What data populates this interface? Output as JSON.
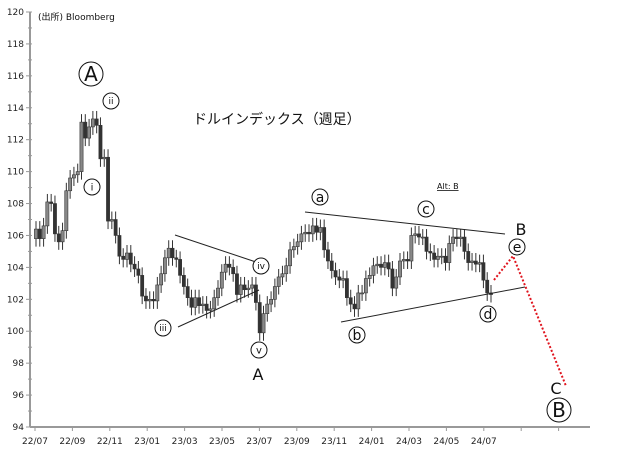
{
  "chart_data": {
    "type": "candlestick",
    "title": "ドルインデックス（週足）",
    "source": "(出所)  Bloomberg",
    "alt_label": "Alt: B",
    "ylim": [
      94,
      120
    ],
    "yticks": [
      94,
      96,
      98,
      100,
      102,
      104,
      106,
      108,
      110,
      112,
      114,
      116,
      118,
      120
    ],
    "xtick_labels": [
      "22/07",
      "22/09",
      "22/11",
      "23/01",
      "23/03",
      "23/05",
      "23/07",
      "23/09",
      "23/11",
      "24/01",
      "24/03",
      "24/05",
      "24/07"
    ],
    "grid": false,
    "close": [
      106.4,
      105.8,
      106.6,
      108.1,
      108.0,
      106.1,
      105.6,
      106.3,
      108.8,
      109.6,
      109.8,
      110.0,
      113.1,
      112.1,
      112.8,
      113.3,
      112.9,
      110.8,
      110.9,
      106.9,
      107.0,
      106.0,
      104.7,
      104.5,
      104.9,
      104.2,
      103.9,
      103.5,
      102.2,
      101.9,
      102.0,
      101.9,
      102.9,
      103.6,
      104.6,
      105.2,
      104.6,
      104.5,
      103.5,
      102.8,
      102.1,
      101.5,
      102.1,
      101.6,
      101.7,
      101.3,
      101.4,
      102.1,
      102.7,
      103.7,
      104.2,
      104.0,
      103.6,
      102.3,
      102.9,
      102.6,
      102.7,
      102.9,
      101.8,
      99.9,
      101.1,
      101.7,
      102.0,
      102.8,
      103.4,
      103.6,
      104.1,
      105.1,
      105.3,
      105.6,
      106.1,
      106.2,
      106.1,
      106.6,
      106.2,
      106.5,
      105.1,
      104.4,
      103.8,
      103.4,
      103.2,
      103.3,
      102.1,
      101.7,
      101.4,
      102.4,
      102.4,
      103.3,
      103.5,
      104.1,
      104.2,
      104.0,
      104.3,
      103.9,
      102.7,
      103.4,
      104.4,
      104.5,
      104.4,
      106.0,
      106.1,
      105.9,
      105.9,
      105.0,
      104.9,
      104.5,
      104.7,
      104.7,
      104.3,
      105.5,
      105.9,
      105.8,
      105.9,
      105.0,
      104.3,
      104.4,
      104.2,
      104.3,
      103.2,
      102.4,
      102.3
    ],
    "wave_labels": {
      "A_major": "A",
      "ii": "ii",
      "i": "i",
      "iii": "iii",
      "iv": "iv",
      "v": "v",
      "A_minor": "A",
      "a": "a",
      "b": "b",
      "c": "c",
      "d": "d",
      "e": "e",
      "B_minor": "B",
      "C_minor": "C",
      "B_major": "B"
    },
    "colors": {
      "candle": "#333333",
      "projection": "#e0141e",
      "axis": "#999999"
    }
  }
}
